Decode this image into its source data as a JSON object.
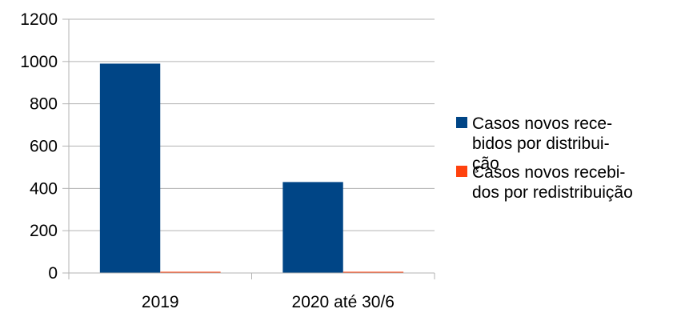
{
  "chart_data": {
    "type": "bar",
    "categories": [
      "2019",
      "2020 até 30/6"
    ],
    "series": [
      {
        "name": "Casos novos recebidos por distribuição",
        "legend_lines": [
          "Casos novos rece-",
          "bidos por distribui-",
          "ção"
        ],
        "color": "#004586",
        "values": [
          990,
          430
        ]
      },
      {
        "name": "Casos novos recebidos por redistribuição",
        "legend_lines": [
          "Casos novos recebi-",
          "dos por redistribuição"
        ],
        "color": "#ff420e",
        "values": [
          3,
          5
        ]
      }
    ],
    "title": "",
    "xlabel": "",
    "ylabel": "",
    "ylim": [
      0,
      1200
    ],
    "yticks": [
      "0",
      "200",
      "400",
      "600",
      "800",
      "1000",
      "1200"
    ],
    "grid": true,
    "legend_position": "right"
  }
}
